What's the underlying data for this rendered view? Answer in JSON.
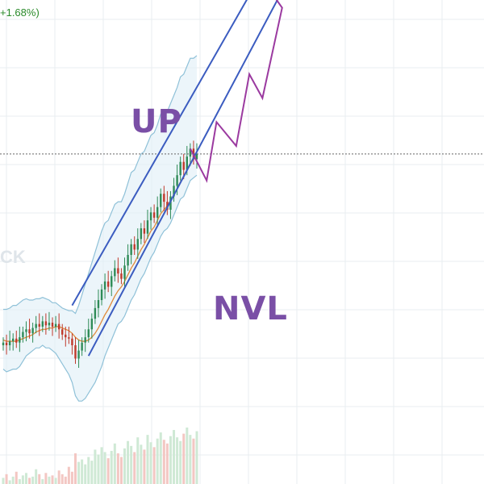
{
  "header": {
    "change_text": "+1.68%)"
  },
  "watermark": {
    "text": "CK"
  },
  "annotations": {
    "up_label": "UP",
    "nvl_label": "NVL"
  },
  "colors": {
    "grid": "#e9edf1",
    "channel": "#3b5cc0",
    "zigzag": "#9b3aa0",
    "band": "#8fc1d8",
    "band_fill": "#dfeef6",
    "ma": "#e08a3c",
    "candle_up": "#2e8b57",
    "candle_down": "#c0392b",
    "vol_up": "#cfe9d5",
    "vol_down": "#f3c7c3",
    "price_line": "#666666"
  },
  "chart_data": {
    "type": "candlestick",
    "title": "",
    "xlabel": "",
    "ylabel": "",
    "grid": true,
    "legend": "none",
    "x": [
      1,
      2,
      3,
      4,
      5,
      6,
      7,
      8,
      9,
      10,
      11,
      12,
      13,
      14,
      15,
      16,
      17,
      18,
      19,
      20,
      21,
      22,
      23,
      24,
      25,
      26,
      27,
      28,
      29,
      30,
      31,
      32,
      33,
      34,
      35,
      36,
      37,
      38,
      39,
      40,
      41,
      42,
      43,
      44,
      45,
      46,
      47,
      48,
      49,
      50,
      51,
      52,
      53,
      54,
      55,
      56,
      57,
      58,
      59,
      60
    ],
    "close": [
      30,
      28,
      31,
      33,
      30,
      34,
      38,
      40,
      37,
      41,
      44,
      42,
      46,
      43,
      45,
      42,
      44,
      40,
      36,
      34,
      33,
      28,
      18,
      24,
      30,
      34,
      40,
      48,
      56,
      62,
      70,
      76,
      72,
      80,
      86,
      82,
      78,
      88,
      96,
      104,
      100,
      108,
      116,
      112,
      122,
      128,
      124,
      132,
      142,
      136,
      130,
      140,
      148,
      156,
      166,
      160,
      170,
      176,
      168,
      172
    ],
    "volume": [
      5,
      8,
      3,
      6,
      10,
      4,
      7,
      9,
      5,
      6,
      12,
      8,
      4,
      9,
      6,
      7,
      5,
      11,
      8,
      6,
      14,
      10,
      25,
      18,
      20,
      16,
      22,
      19,
      28,
      24,
      30,
      26,
      21,
      27,
      33,
      25,
      22,
      29,
      35,
      31,
      26,
      38,
      32,
      28,
      40,
      34,
      30,
      37,
      42,
      36,
      33,
      39,
      44,
      38,
      35,
      41,
      46,
      40,
      37,
      43
    ],
    "band_upper": [
      55,
      55,
      56,
      58,
      58,
      60,
      62,
      63,
      62,
      62,
      63,
      63,
      64,
      63,
      62,
      60,
      60,
      58,
      56,
      55,
      54,
      54,
      52,
      58,
      66,
      74,
      82,
      90,
      98,
      106,
      114,
      120,
      122,
      128,
      134,
      136,
      136,
      142,
      150,
      158,
      160,
      166,
      172,
      174,
      180,
      186,
      188,
      194,
      202,
      204,
      204,
      210,
      216,
      222,
      230,
      232,
      238,
      244,
      244,
      246
    ],
    "band_lower": [
      10,
      8,
      9,
      10,
      10,
      12,
      16,
      20,
      22,
      24,
      26,
      26,
      28,
      26,
      26,
      24,
      22,
      18,
      14,
      10,
      6,
      0,
      -10,
      -14,
      -14,
      -12,
      -8,
      -4,
      0,
      6,
      12,
      20,
      26,
      32,
      38,
      44,
      46,
      50,
      56,
      62,
      66,
      72,
      78,
      82,
      88,
      94,
      98,
      104,
      110,
      114,
      116,
      120,
      126,
      132,
      138,
      140,
      146,
      152,
      154,
      156
    ],
    "ma": [
      32,
      31,
      31,
      31,
      31,
      32,
      33,
      34,
      35,
      36,
      38,
      39,
      40,
      40,
      41,
      41,
      42,
      42,
      41,
      40,
      39,
      37,
      34,
      32,
      31,
      31,
      32,
      34,
      37,
      41,
      46,
      51,
      55,
      60,
      65,
      69,
      72,
      76,
      81,
      86,
      90,
      95,
      100,
      104,
      109,
      114,
      117,
      122,
      127,
      130,
      133,
      137,
      141,
      146,
      151,
      155,
      160,
      165,
      168,
      171
    ],
    "ylim": [
      -40,
      300
    ],
    "price_line": 172,
    "channel": {
      "upper": [
        [
          22,
          58
        ],
        [
          78,
          300
        ]
      ],
      "lower": [
        [
          27,
          20
        ],
        [
          85,
          290
        ]
      ]
    },
    "zigzag": [
      [
        58,
        176
      ],
      [
        63,
        152
      ],
      [
        66,
        196
      ],
      [
        72,
        178
      ],
      [
        76,
        232
      ],
      [
        80,
        214
      ],
      [
        86,
        282
      ],
      [
        82,
        296
      ]
    ]
  }
}
